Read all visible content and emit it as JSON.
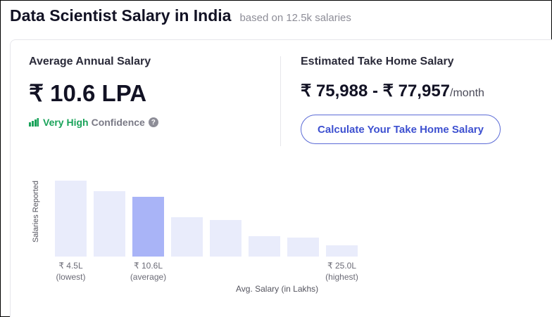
{
  "header": {
    "title": "Data Scientist Salary in India",
    "subtitle": "based on 12.5k salaries"
  },
  "average": {
    "label": "Average Annual Salary",
    "value": "₹ 10.6 LPA",
    "confidence_level": "Very High",
    "confidence_word": "Confidence",
    "help_glyph": "?"
  },
  "take_home": {
    "label": "Estimated Take Home Salary",
    "range": "₹ 75,988 - ₹ 77,957",
    "period": "/month",
    "button_label": "Calculate Your Take Home Salary"
  },
  "colors": {
    "bar": "#e9ecfb",
    "bar_highlight": "#a9b4f7",
    "confidence": "#1aa35a",
    "accent": "#3d50d0"
  },
  "chart_data": {
    "type": "bar",
    "ylabel": "Salaries Reported",
    "xlabel": "Avg. Salary (in Lakhs)",
    "values": [
      1.0,
      0.86,
      0.79,
      0.52,
      0.48,
      0.27,
      0.25,
      0.15
    ],
    "highlight_index": 2,
    "tick_labels": [
      {
        "index": 0,
        "value": "₹ 4.5L",
        "note": "(lowest)"
      },
      {
        "index": 2,
        "value": "₹ 10.6L",
        "note": "(average)"
      },
      {
        "index": 7,
        "value": "₹ 25.0L",
        "note": "(highest)"
      }
    ]
  }
}
